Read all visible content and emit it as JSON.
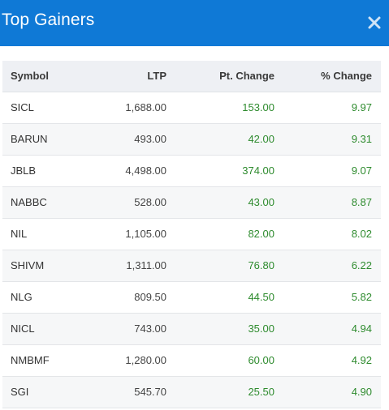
{
  "header": {
    "title": "Top Gainers",
    "close_icon": "close-icon"
  },
  "colors": {
    "header_bg": "#0f79d6",
    "positive": "#2e8b2e"
  },
  "table": {
    "columns": [
      "Symbol",
      "LTP",
      "Pt. Change",
      "% Change"
    ],
    "rows": [
      {
        "symbol": "SICL",
        "ltp": "1,688.00",
        "pt_change": "153.00",
        "pct_change": "9.97"
      },
      {
        "symbol": "BARUN",
        "ltp": "493.00",
        "pt_change": "42.00",
        "pct_change": "9.31"
      },
      {
        "symbol": "JBLB",
        "ltp": "4,498.00",
        "pt_change": "374.00",
        "pct_change": "9.07"
      },
      {
        "symbol": "NABBC",
        "ltp": "528.00",
        "pt_change": "43.00",
        "pct_change": "8.87"
      },
      {
        "symbol": "NIL",
        "ltp": "1,105.00",
        "pt_change": "82.00",
        "pct_change": "8.02"
      },
      {
        "symbol": "SHIVM",
        "ltp": "1,311.00",
        "pt_change": "76.80",
        "pct_change": "6.22"
      },
      {
        "symbol": "NLG",
        "ltp": "809.50",
        "pt_change": "44.50",
        "pct_change": "5.82"
      },
      {
        "symbol": "NICL",
        "ltp": "743.00",
        "pt_change": "35.00",
        "pct_change": "4.94"
      },
      {
        "symbol": "NMBMF",
        "ltp": "1,280.00",
        "pt_change": "60.00",
        "pct_change": "4.92"
      },
      {
        "symbol": "SGI",
        "ltp": "545.70",
        "pt_change": "25.50",
        "pct_change": "4.90"
      }
    ]
  }
}
